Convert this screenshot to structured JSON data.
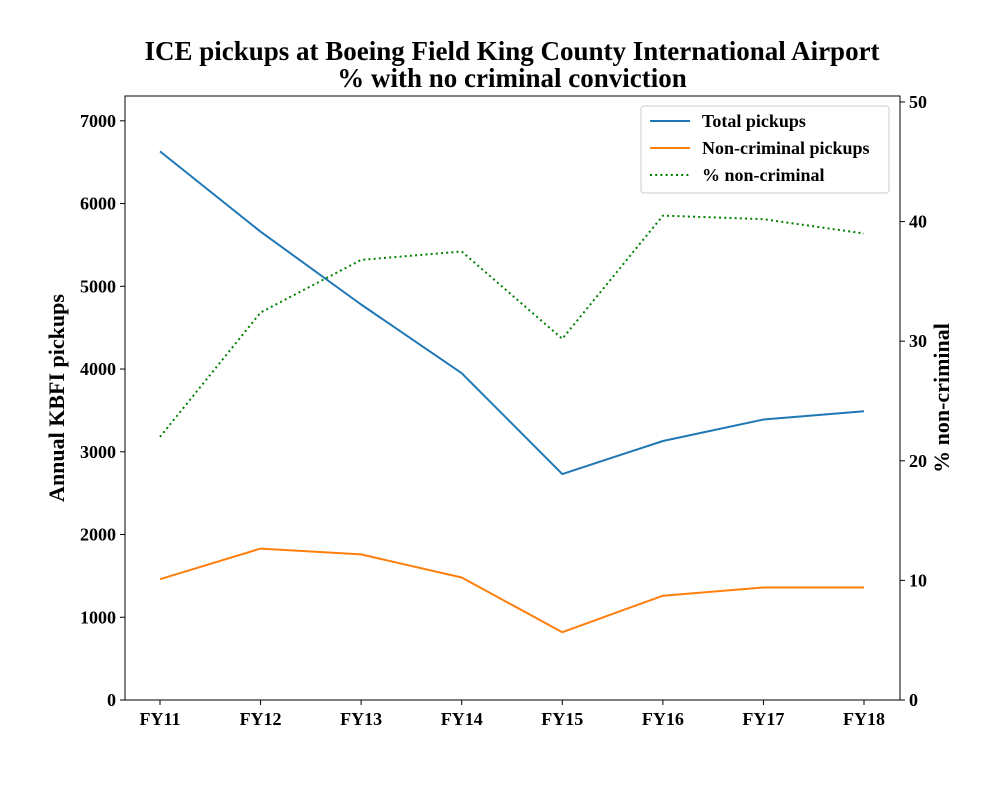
{
  "chart_data": {
    "type": "line",
    "title": "ICE pickups at Boeing Field King County International Airport",
    "subtitle": "% with no criminal conviction",
    "ylabel": "Annual KBFI pickups",
    "y2label": "% non-criminal",
    "categories": [
      "FY11",
      "FY12",
      "FY13",
      "FY14",
      "FY15",
      "FY16",
      "FY17",
      "FY18"
    ],
    "ylim": [
      0,
      7300
    ],
    "y2lim": [
      0,
      50.5
    ],
    "yticks": [
      0,
      1000,
      2000,
      3000,
      4000,
      5000,
      6000,
      7000
    ],
    "y2ticks": [
      0,
      10,
      20,
      30,
      40,
      50
    ],
    "legend_position": "top-right",
    "grid": false,
    "series": [
      {
        "name": "Total pickups",
        "axis": "left",
        "color": "#1f77b4",
        "style": "solid",
        "values": [
          6630,
          5660,
          4780,
          3950,
          2730,
          3130,
          3390,
          3490
        ]
      },
      {
        "name": "Non-criminal pickups",
        "axis": "left",
        "color": "#ff7f0e",
        "style": "solid",
        "values": [
          1460,
          1830,
          1760,
          1480,
          820,
          1260,
          1360,
          1360
        ]
      },
      {
        "name": "% non-criminal",
        "axis": "right",
        "color": "#008000",
        "style": "dotted",
        "values": [
          22.0,
          32.4,
          36.8,
          37.5,
          30.2,
          40.5,
          40.2,
          39.0
        ]
      }
    ]
  }
}
